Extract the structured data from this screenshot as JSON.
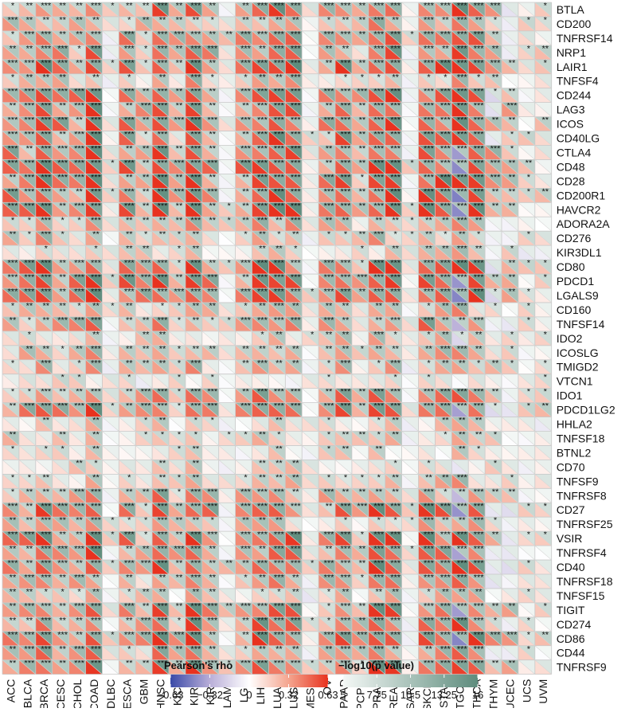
{
  "chart_data": {
    "type": "heatmap",
    "title": "",
    "cancers": [
      "ACC",
      "BLCA",
      "BRCA",
      "CESC",
      "CHOL",
      "COAD",
      "DLBC",
      "ESCA",
      "GBM",
      "HNSC",
      "KICH",
      "KIRC",
      "KIRP",
      "LAML",
      "LGG",
      "LIHC",
      "LUAD",
      "LUSC",
      "MESO",
      "OV",
      "PAAD",
      "PCPG",
      "PRAD",
      "READ",
      "SARC",
      "SKCM",
      "STAD",
      "TGCT",
      "THCA",
      "THYM",
      "UCEC",
      "UCS",
      "UVM"
    ],
    "genes": [
      "BTLA",
      "CD200",
      "TNFRSF14",
      "NRP1",
      "LAIR1",
      "TNFSF4",
      "CD244",
      "LAG3",
      "ICOS",
      "CD40LG",
      "CTLA4",
      "CD48",
      "CD28",
      "CD200R1",
      "HAVCR2",
      "ADORA2A",
      "CD276",
      "KIR3DL1",
      "CD80",
      "PDCD1",
      "LGALS9",
      "CD160",
      "TNFSF14",
      "IDO2",
      "ICOSLG",
      "TMIGD2",
      "VTCN1",
      "IDO1",
      "PDCD1LG2",
      "HHLA2",
      "TNFSF18",
      "BTNL2",
      "CD70",
      "TNFSF9",
      "TNFRSF8",
      "CD27",
      "TNFRSF25",
      "VSIR",
      "TNFRSF4",
      "CD40",
      "TNFRSF18",
      "TNFSF15",
      "TIGIT",
      "CD274",
      "CD86",
      "CD44",
      "TNFRSF9"
    ],
    "cell_note": "Each cell is split diagonally: lower-left triangle = Pearson's rho, upper-right triangle = -log10(p value); asterisks mark significance.",
    "rho_legend": {
      "title": "Pearson's rho",
      "ticks": [
        "−0.63",
        "−0.32",
        "0",
        "0.32",
        "0.63"
      ],
      "range": [
        -0.63,
        0.63
      ],
      "colors": [
        "#3a4aa8",
        "#b9aed8",
        "#ffffff",
        "#f4a58f",
        "#e8321f"
      ]
    },
    "p_legend": {
      "title": "−log10(p value)",
      "ticks": [
        "5",
        "7.75",
        "10.5",
        "13.25",
        "16"
      ],
      "range": [
        5,
        16
      ],
      "colors": [
        "#f4f8f6",
        "#5e8c7d"
      ]
    },
    "xlabel": "",
    "ylabel": ""
  }
}
